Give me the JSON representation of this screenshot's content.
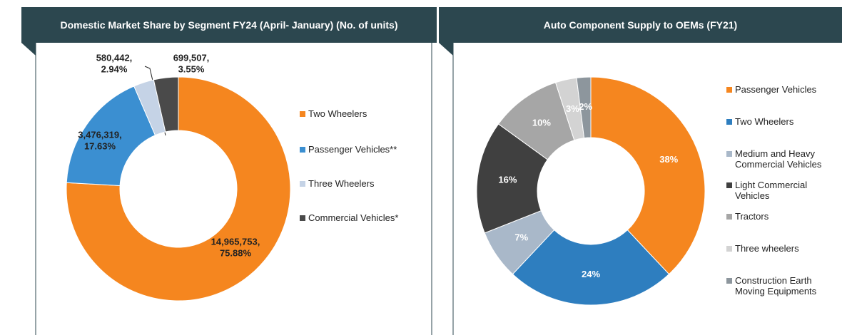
{
  "chart_data": [
    {
      "type": "donut",
      "title": "Domestic Market Share by Segment FY24 (April- January) (No. of units)",
      "categories": [
        "Two Wheelers",
        "Passenger Vehicles**",
        "Three Wheelers",
        "Commercial Vehicles*"
      ],
      "values": [
        14965753,
        3476319,
        580442,
        699507
      ],
      "value_labels": [
        "14,965,753,",
        "3,476,319,",
        "580,442,",
        "699,507,"
      ],
      "percentages": [
        75.88,
        17.63,
        2.94,
        3.55
      ],
      "percentage_labels": [
        "75.88%",
        "17.63%",
        "2.94%",
        "3.55%"
      ],
      "colors": [
        "#f5861f",
        "#3b8fd1",
        "#c5d3e6",
        "#4a4a4a"
      ]
    },
    {
      "type": "donut",
      "title": "Auto Component Supply to OEMs (FY21)",
      "categories": [
        "Passenger Vehicles",
        "Two Wheelers",
        "Medium and Heavy Commercial Vehicles",
        "Light Commercial Vehicles",
        "Tractors",
        "Three wheelers",
        "Construction Earth Moving Equipments"
      ],
      "values": [
        38,
        24,
        7,
        16,
        10,
        3,
        2
      ],
      "value_labels": [
        "38%",
        "24%",
        "7%",
        "16%",
        "10%",
        "3%",
        "2%"
      ],
      "colors": [
        "#f5861f",
        "#2e7ebf",
        "#a9b8c9",
        "#404040",
        "#a6a6a6",
        "#d3d3d3",
        "#8d969d"
      ]
    }
  ]
}
